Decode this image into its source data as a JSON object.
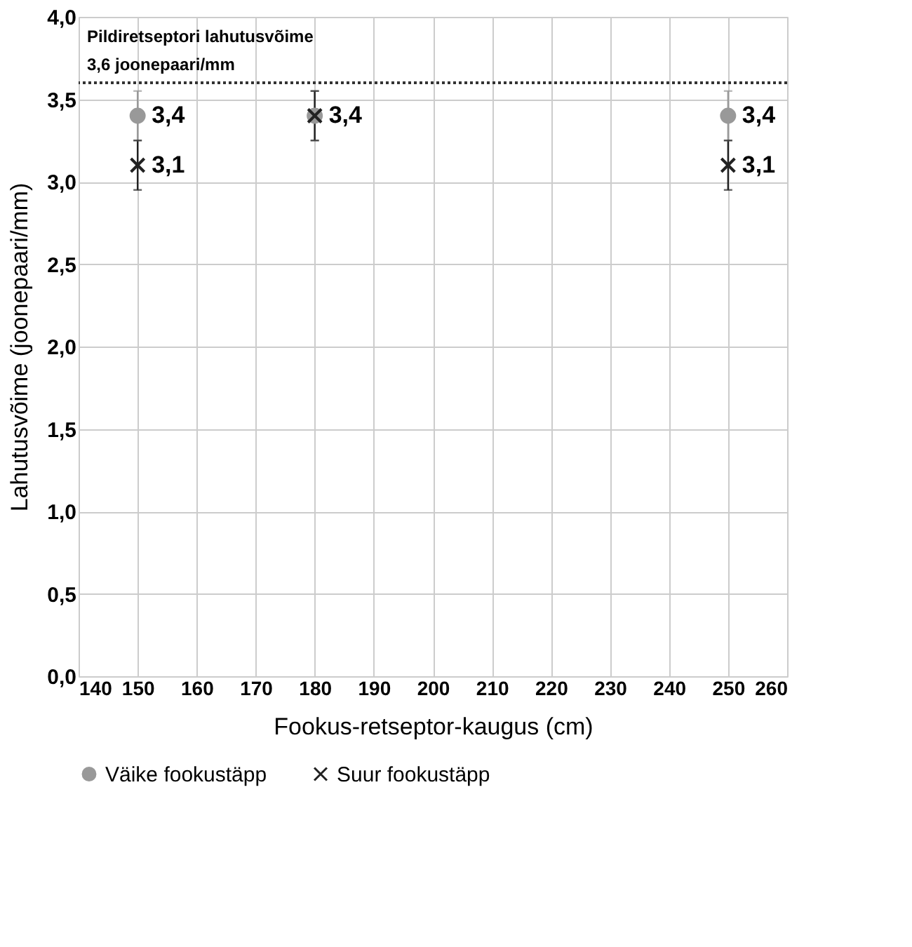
{
  "chart_data": {
    "type": "scatter",
    "xlabel": "Fookus-retseptor-kaugus (cm)",
    "ylabel": "Lahutusvõime (joonepaari/mm)",
    "xlim": [
      140,
      260
    ],
    "xticks": [
      140,
      150,
      160,
      170,
      180,
      190,
      200,
      210,
      220,
      230,
      240,
      250,
      260
    ],
    "ylim": [
      0,
      4
    ],
    "yticks": [
      {
        "value": 0,
        "label": "0,0"
      },
      {
        "value": 0.5,
        "label": "0,5"
      },
      {
        "value": 1,
        "label": "1,0"
      },
      {
        "value": 1.5,
        "label": "1,5"
      },
      {
        "value": 2,
        "label": "2,0"
      },
      {
        "value": 2.5,
        "label": "2,5"
      },
      {
        "value": 3,
        "label": "3,0"
      },
      {
        "value": 3.5,
        "label": "3,5"
      },
      {
        "value": 4,
        "label": "4,0"
      }
    ],
    "grid": true,
    "legend": "bottom",
    "series": [
      {
        "name": "Väike fookustäpp",
        "color": "#999999",
        "marker": "circle",
        "x": [
          150,
          180,
          250
        ],
        "values": [
          3.4,
          3.4,
          3.4
        ],
        "errors": [
          0.15,
          0.15,
          0.15
        ],
        "value_labels": [
          "3,4",
          null,
          "3,4"
        ]
      },
      {
        "name": "Suur fookustäpp",
        "color": "#222222",
        "marker": "cross",
        "x": [
          150,
          180,
          250
        ],
        "values": [
          3.1,
          3.4,
          3.1
        ],
        "errors": [
          0.15,
          0.15,
          0.15
        ],
        "value_labels": [
          "3,1",
          "3,4",
          "3,1"
        ]
      }
    ],
    "ref_lines": [
      {
        "axis": "y",
        "value": 3.6,
        "label": "Pildiretseptori lahutusvõime\n3,6 joonepaari/mm",
        "color": "#333333",
        "line_style": "dotted"
      }
    ]
  }
}
